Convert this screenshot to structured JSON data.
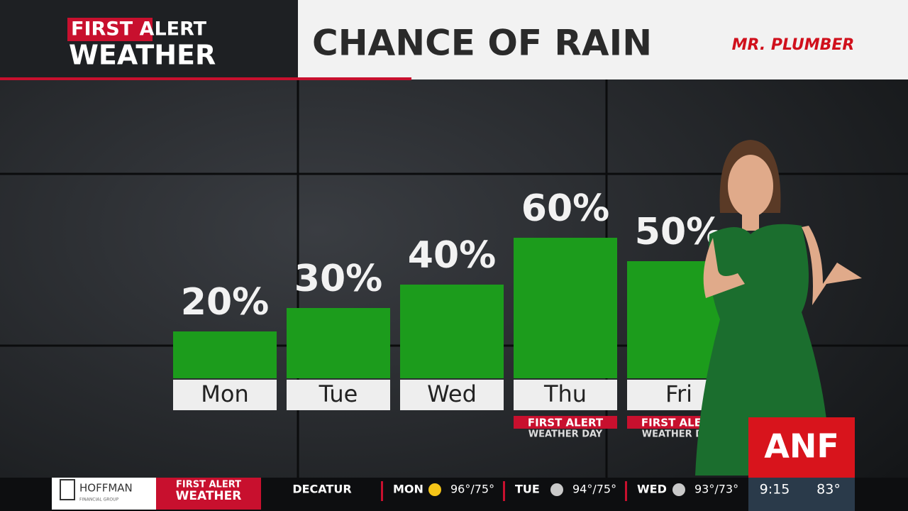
{
  "header": {
    "logo_line1": "FIRST ALERT",
    "logo_line2": "WEATHER",
    "sponsor": "MR. PLUMBER"
  },
  "chart_data": {
    "type": "bar",
    "title": "CHANCE OF RAIN",
    "categories": [
      "Mon",
      "Tue",
      "Wed",
      "Thu",
      "Fri"
    ],
    "values": [
      20,
      30,
      40,
      60,
      50
    ],
    "value_labels": [
      "20%",
      "30%",
      "40%",
      "60%",
      "50%"
    ],
    "color": "#1c9c1c",
    "annotations": [
      null,
      null,
      null,
      {
        "line1": "FIRST ALERT",
        "line2": "WEATHER DAY"
      },
      {
        "line1": "FIRST ALERT",
        "line2": "WEATHER DAY"
      }
    ]
  },
  "station_logo": "ANF",
  "ticker": {
    "sponsor": "HOFFMAN",
    "sponsor_sub": "FINANCIAL GROUP",
    "brand_line1": "FIRST ALERT",
    "brand_line2": "WEATHER",
    "city": "DECATUR",
    "days": [
      {
        "day": "MON",
        "temps": "96°/75°"
      },
      {
        "day": "TUE",
        "temps": "94°/75°"
      },
      {
        "day": "WED",
        "temps": "93°/73°"
      }
    ],
    "time": "9:15",
    "current_temp": "83°"
  }
}
